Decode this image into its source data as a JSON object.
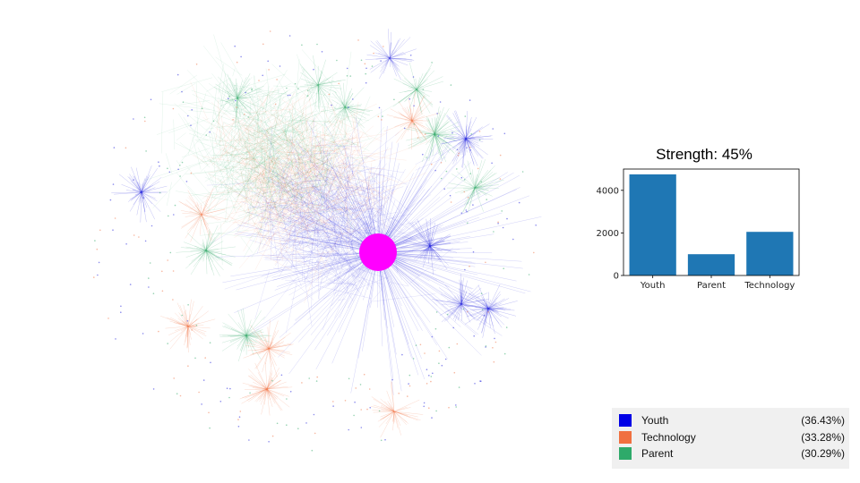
{
  "network": {
    "categories": [
      {
        "name": "Youth",
        "color": "#1a1adc"
      },
      {
        "name": "Technology",
        "color": "#f07040"
      },
      {
        "name": "Parent",
        "color": "#2ea866"
      }
    ],
    "hub_color": "#ff00ff"
  },
  "chart_data": {
    "type": "bar",
    "title": "Strength: 45%",
    "categories": [
      "Youth",
      "Parent",
      "Technology"
    ],
    "values": [
      4750,
      1000,
      2050
    ],
    "ylim": [
      0,
      5000
    ],
    "yticks": [
      0,
      2000,
      4000
    ],
    "bar_color": "#1f77b4",
    "xlabel": "",
    "ylabel": ""
  },
  "legend": {
    "items": [
      {
        "label": "Youth",
        "percent": "(36.43%)",
        "color": "#0000e6"
      },
      {
        "label": "Technology",
        "percent": "(33.28%)",
        "color": "#f07040"
      },
      {
        "label": "Parent",
        "percent": "(30.29%)",
        "color": "#2eaa6a"
      }
    ]
  }
}
